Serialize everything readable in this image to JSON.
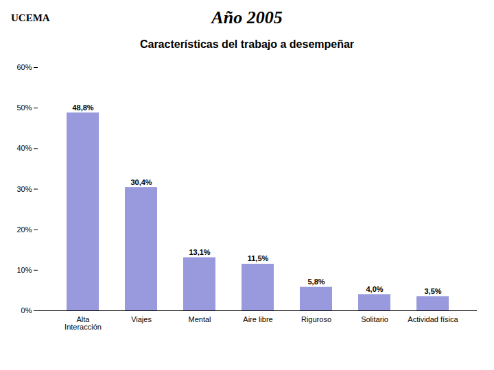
{
  "chart_data": {
    "type": "bar",
    "title": "Año 2005",
    "subtitle": "Características del trabajo a desempeñar",
    "annotations": [
      "UCEMA"
    ],
    "categories": [
      "Alta\nInteracción",
      "Viajes",
      "Mental",
      "Aire libre",
      "Riguroso",
      "Solitario",
      "Actividad física"
    ],
    "values": [
      48.8,
      30.4,
      13.1,
      11.5,
      5.8,
      4.0,
      3.5
    ],
    "value_labels": [
      "48,8%",
      "30,4%",
      "13,1%",
      "11,5%",
      "5,8%",
      "4,0%",
      "3,5%"
    ],
    "data_labels": true,
    "color": "#9999dd",
    "ylim": [
      0,
      60
    ],
    "yticks": [
      {
        "value": 0,
        "label": "0%"
      },
      {
        "value": 10,
        "label": "10%"
      },
      {
        "value": 20,
        "label": "20%"
      },
      {
        "value": 30,
        "label": "30%"
      },
      {
        "value": 40,
        "label": "40%"
      },
      {
        "value": 50,
        "label": "50%"
      },
      {
        "value": 60,
        "label": "60%"
      }
    ],
    "grid": false
  }
}
